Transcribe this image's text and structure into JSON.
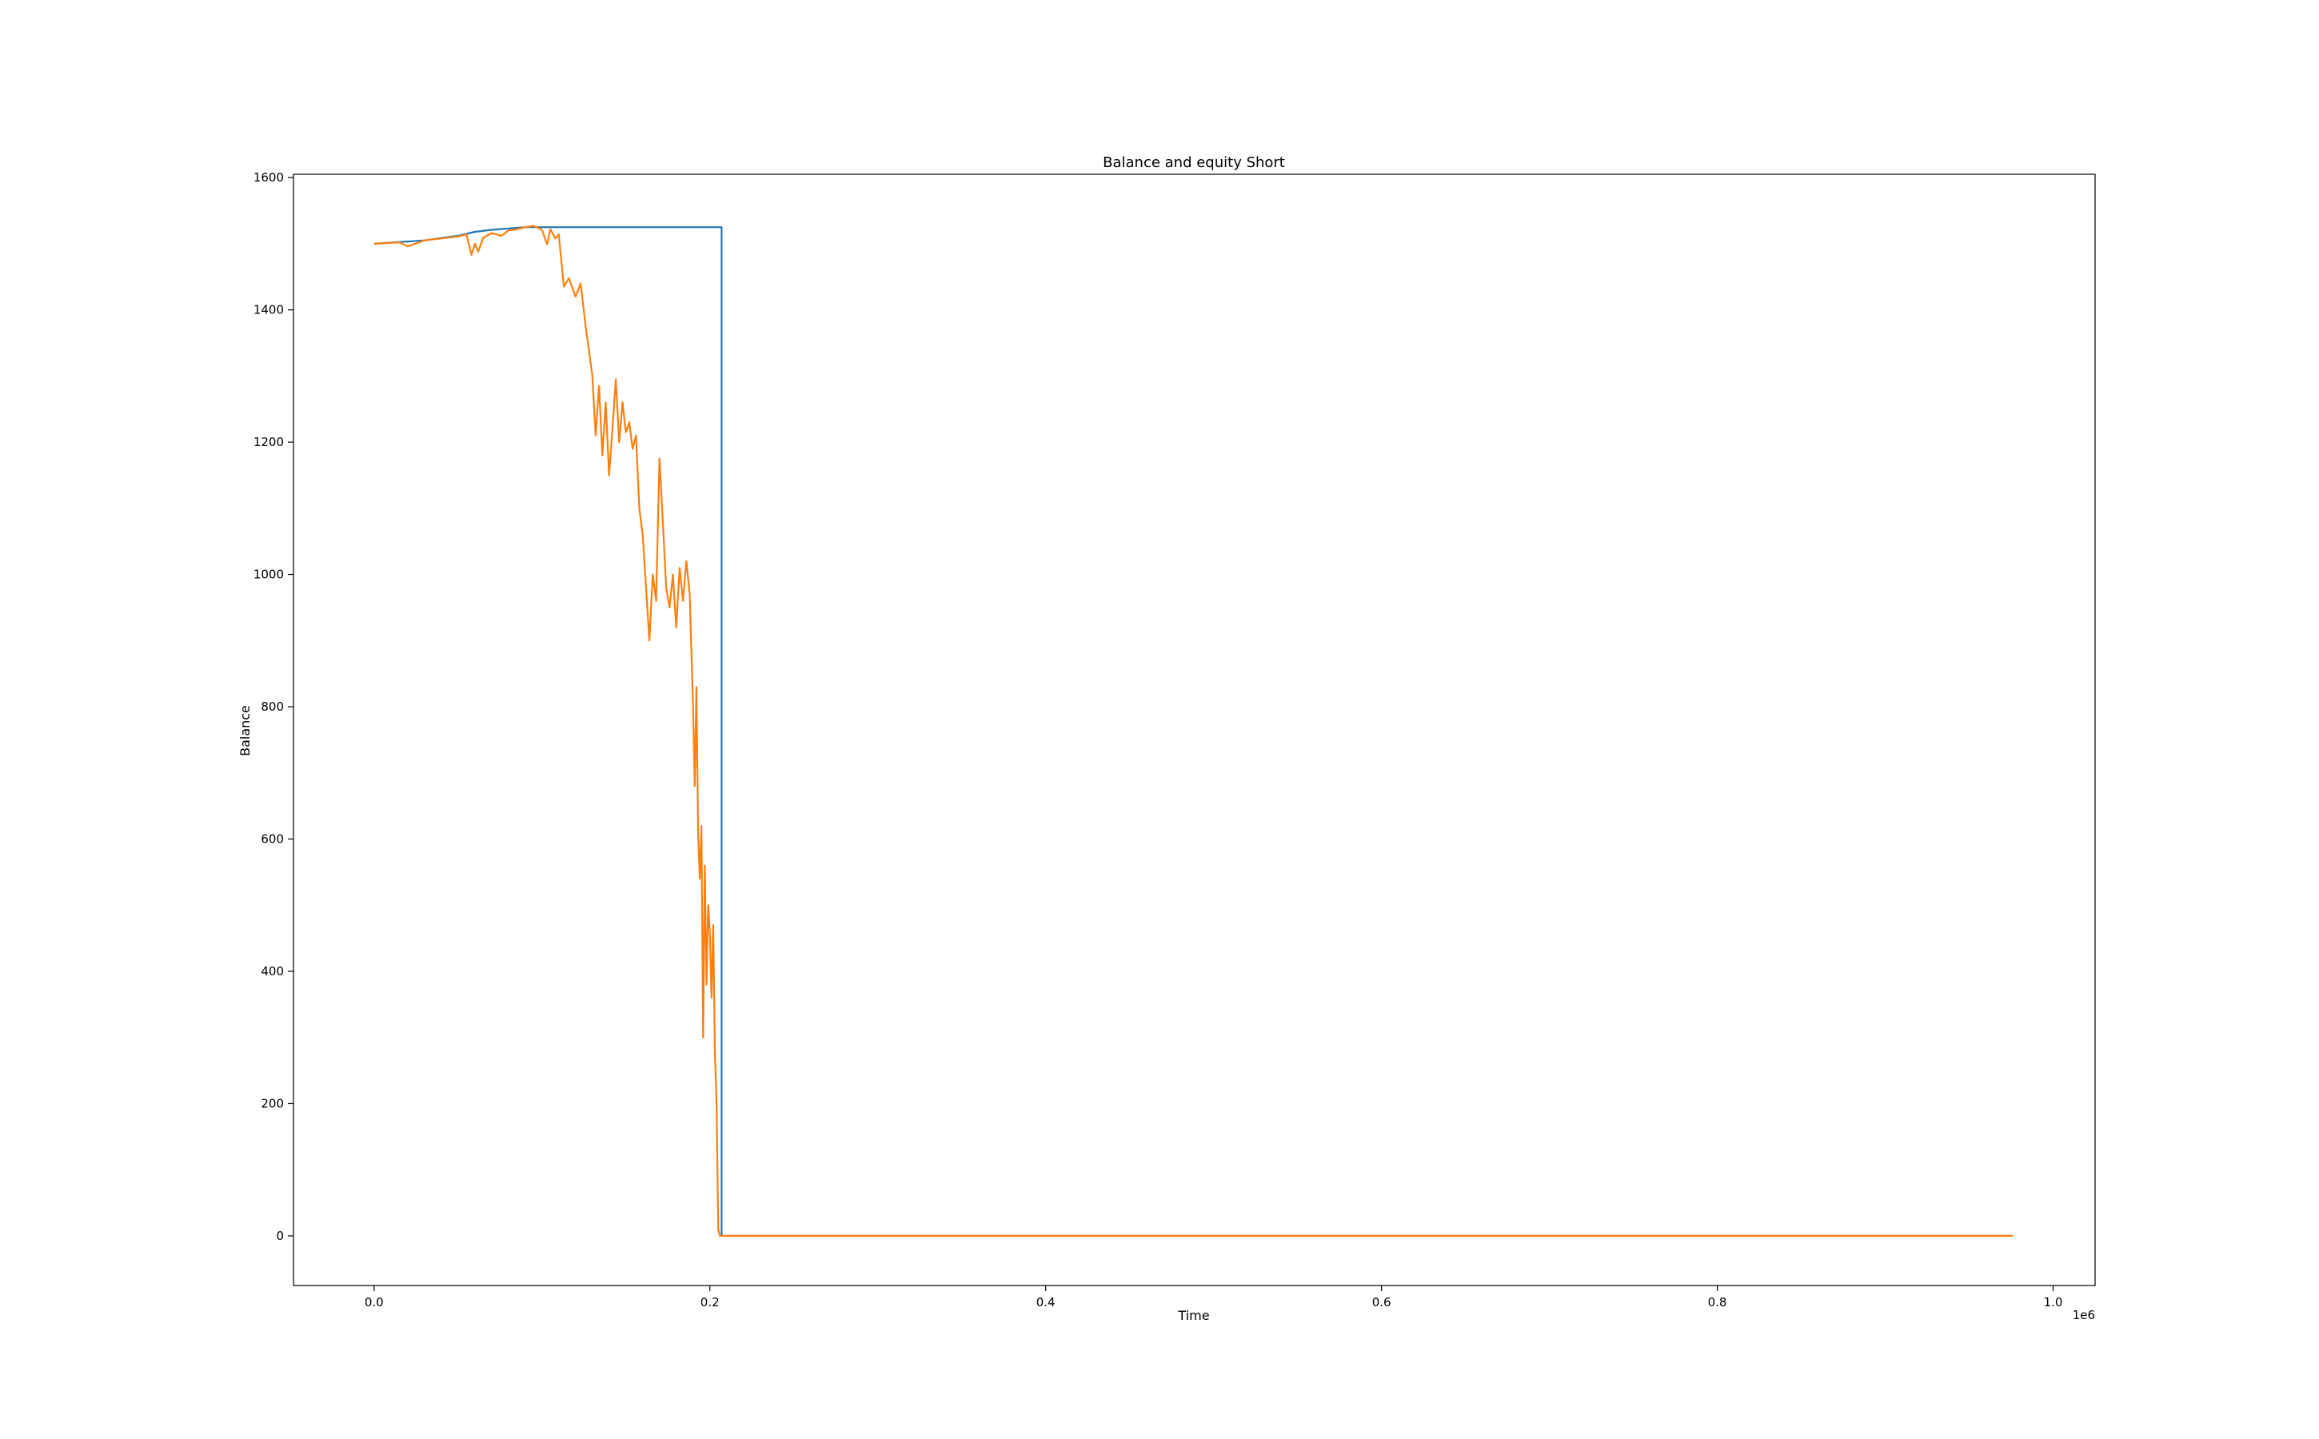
{
  "chart_data": {
    "type": "line",
    "title": "Balance and equity Short",
    "xlabel": "Time",
    "ylabel": "Balance",
    "x_offset_label": "1e6",
    "xlim": [
      -0.048,
      1.025
    ],
    "ylim": [
      -75,
      1605
    ],
    "xticks": [
      0.0,
      0.2,
      0.4,
      0.6,
      0.8,
      1.0
    ],
    "xtick_labels": [
      "0.0",
      "0.2",
      "0.4",
      "0.6",
      "0.8",
      "1.0"
    ],
    "yticks": [
      0,
      200,
      400,
      600,
      800,
      1000,
      1200,
      1400,
      1600
    ],
    "ytick_labels": [
      "0",
      "200",
      "400",
      "600",
      "800",
      "1000",
      "1200",
      "1400",
      "1600"
    ],
    "grid": false,
    "series": [
      {
        "color": "#1f77b4",
        "x": [
          0.0,
          0.03,
          0.05,
          0.06,
          0.07,
          0.08,
          0.09,
          0.1,
          0.207,
          0.207,
          0.976
        ],
        "y": [
          1500,
          1505,
          1512,
          1518,
          1521,
          1523,
          1525,
          1525,
          1525,
          0,
          0
        ]
      },
      {
        "color": "#ff7f0e",
        "x": [
          0.0,
          0.015,
          0.02,
          0.03,
          0.04,
          0.05,
          0.055,
          0.058,
          0.06,
          0.062,
          0.065,
          0.07,
          0.076,
          0.08,
          0.085,
          0.09,
          0.095,
          0.1,
          0.103,
          0.105,
          0.108,
          0.11,
          0.113,
          0.116,
          0.12,
          0.123,
          0.126,
          0.13,
          0.132,
          0.134,
          0.136,
          0.138,
          0.14,
          0.142,
          0.144,
          0.146,
          0.148,
          0.15,
          0.152,
          0.154,
          0.156,
          0.158,
          0.16,
          0.162,
          0.164,
          0.166,
          0.168,
          0.17,
          0.172,
          0.174,
          0.176,
          0.178,
          0.18,
          0.182,
          0.184,
          0.186,
          0.188,
          0.19,
          0.191,
          0.192,
          0.193,
          0.194,
          0.195,
          0.196,
          0.197,
          0.198,
          0.199,
          0.2,
          0.201,
          0.202,
          0.203,
          0.204,
          0.205,
          0.206,
          0.207,
          0.208,
          0.976
        ],
        "y": [
          1500,
          1502,
          1496,
          1505,
          1508,
          1511,
          1514,
          1483,
          1500,
          1488,
          1509,
          1516,
          1512,
          1520,
          1522,
          1525,
          1527,
          1521,
          1499,
          1522,
          1508,
          1514,
          1435,
          1448,
          1420,
          1440,
          1375,
          1300,
          1210,
          1285,
          1180,
          1260,
          1150,
          1220,
          1295,
          1200,
          1260,
          1215,
          1230,
          1190,
          1210,
          1100,
          1060,
          980,
          900,
          1000,
          960,
          1175,
          1080,
          980,
          950,
          1000,
          920,
          1010,
          960,
          1020,
          970,
          800,
          680,
          830,
          610,
          540,
          620,
          300,
          560,
          380,
          500,
          460,
          360,
          470,
          280,
          200,
          10,
          0,
          0,
          0,
          0
        ]
      }
    ]
  }
}
